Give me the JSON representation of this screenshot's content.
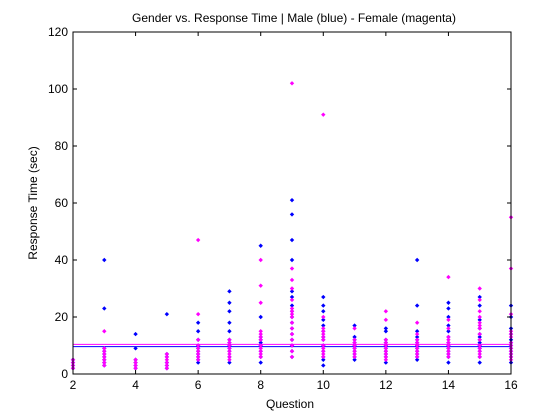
{
  "chart_data": {
    "type": "scatter",
    "title": "Gender vs. Response Time | Male (blue) - Female (magenta)",
    "xlabel": "Question",
    "ylabel": "Response Time (sec)",
    "xlim": [
      2,
      16
    ],
    "ylim": [
      0,
      120
    ],
    "xticks": [
      "2",
      "4",
      "6",
      "8",
      "10",
      "12",
      "14",
      "16"
    ],
    "yticks": [
      "0",
      "20",
      "40",
      "60",
      "80",
      "100",
      "120"
    ],
    "grid": false,
    "series": [
      {
        "name": "Male",
        "color": "#0000ff",
        "points": [
          [
            2,
            2
          ],
          [
            2,
            3
          ],
          [
            2,
            4
          ],
          [
            2,
            5
          ],
          [
            3,
            3
          ],
          [
            3,
            4
          ],
          [
            3,
            5
          ],
          [
            3,
            6
          ],
          [
            3,
            7
          ],
          [
            3,
            8
          ],
          [
            3,
            9
          ],
          [
            3,
            23
          ],
          [
            3,
            40
          ],
          [
            4,
            2
          ],
          [
            4,
            3
          ],
          [
            4,
            4
          ],
          [
            4,
            5
          ],
          [
            4,
            9
          ],
          [
            4,
            14
          ],
          [
            5,
            2
          ],
          [
            5,
            3
          ],
          [
            5,
            4
          ],
          [
            5,
            6
          ],
          [
            5,
            7
          ],
          [
            5,
            21
          ],
          [
            6,
            4
          ],
          [
            6,
            5
          ],
          [
            6,
            6
          ],
          [
            6,
            7
          ],
          [
            6,
            8
          ],
          [
            6,
            9
          ],
          [
            6,
            10
          ],
          [
            6,
            12
          ],
          [
            6,
            15
          ],
          [
            6,
            18
          ],
          [
            7,
            4
          ],
          [
            7,
            6
          ],
          [
            7,
            8
          ],
          [
            7,
            9
          ],
          [
            7,
            10
          ],
          [
            7,
            11
          ],
          [
            7,
            12
          ],
          [
            7,
            15
          ],
          [
            7,
            18
          ],
          [
            7,
            22
          ],
          [
            7,
            25
          ],
          [
            7,
            29
          ],
          [
            8,
            4
          ],
          [
            8,
            6
          ],
          [
            8,
            8
          ],
          [
            8,
            10
          ],
          [
            8,
            11
          ],
          [
            8,
            12
          ],
          [
            8,
            13
          ],
          [
            8,
            20
          ],
          [
            8,
            45
          ],
          [
            9,
            6
          ],
          [
            9,
            8
          ],
          [
            9,
            10
          ],
          [
            9,
            12
          ],
          [
            9,
            14
          ],
          [
            9,
            16
          ],
          [
            9,
            18
          ],
          [
            9,
            20
          ],
          [
            9,
            22
          ],
          [
            9,
            24
          ],
          [
            9,
            27
          ],
          [
            9,
            29
          ],
          [
            9,
            40
          ],
          [
            9,
            47
          ],
          [
            9,
            56
          ],
          [
            9,
            61
          ],
          [
            10,
            3
          ],
          [
            10,
            5
          ],
          [
            10,
            6
          ],
          [
            10,
            8
          ],
          [
            10,
            10
          ],
          [
            10,
            12
          ],
          [
            10,
            13
          ],
          [
            10,
            15
          ],
          [
            10,
            17
          ],
          [
            10,
            19
          ],
          [
            10,
            22
          ],
          [
            10,
            24
          ],
          [
            10,
            27
          ],
          [
            11,
            5
          ],
          [
            11,
            6
          ],
          [
            11,
            7
          ],
          [
            11,
            8
          ],
          [
            11,
            9
          ],
          [
            11,
            10
          ],
          [
            11,
            11
          ],
          [
            11,
            12
          ],
          [
            11,
            13
          ],
          [
            11,
            17
          ],
          [
            12,
            4
          ],
          [
            12,
            6
          ],
          [
            12,
            7
          ],
          [
            12,
            8
          ],
          [
            12,
            9
          ],
          [
            12,
            10
          ],
          [
            12,
            11
          ],
          [
            12,
            12
          ],
          [
            12,
            15
          ],
          [
            12,
            16
          ],
          [
            13,
            5
          ],
          [
            13,
            6
          ],
          [
            13,
            7
          ],
          [
            13,
            8
          ],
          [
            13,
            9
          ],
          [
            13,
            10
          ],
          [
            13,
            11
          ],
          [
            13,
            12
          ],
          [
            13,
            13
          ],
          [
            13,
            15
          ],
          [
            13,
            24
          ],
          [
            13,
            40
          ],
          [
            14,
            4
          ],
          [
            14,
            6
          ],
          [
            14,
            7
          ],
          [
            14,
            8
          ],
          [
            14,
            9
          ],
          [
            14,
            10
          ],
          [
            14,
            11
          ],
          [
            14,
            13
          ],
          [
            14,
            15
          ],
          [
            14,
            17
          ],
          [
            14,
            20
          ],
          [
            14,
            23
          ],
          [
            14,
            25
          ],
          [
            15,
            4
          ],
          [
            15,
            6
          ],
          [
            15,
            8
          ],
          [
            15,
            9
          ],
          [
            15,
            10
          ],
          [
            15,
            11
          ],
          [
            15,
            12
          ],
          [
            15,
            13
          ],
          [
            15,
            14
          ],
          [
            15,
            16
          ],
          [
            15,
            19
          ],
          [
            15,
            24
          ],
          [
            15,
            27
          ],
          [
            16,
            4
          ],
          [
            16,
            6
          ],
          [
            16,
            7
          ],
          [
            16,
            8
          ],
          [
            16,
            9
          ],
          [
            16,
            10
          ],
          [
            16,
            11
          ],
          [
            16,
            12
          ],
          [
            16,
            14
          ],
          [
            16,
            16
          ],
          [
            16,
            20
          ],
          [
            16,
            24
          ]
        ]
      },
      {
        "name": "Female",
        "color": "#ff00ff",
        "points": [
          [
            2,
            2
          ],
          [
            2,
            3
          ],
          [
            2,
            4
          ],
          [
            2,
            5
          ],
          [
            3,
            3
          ],
          [
            3,
            4
          ],
          [
            3,
            5
          ],
          [
            3,
            6
          ],
          [
            3,
            7
          ],
          [
            3,
            8
          ],
          [
            3,
            9
          ],
          [
            3,
            15
          ],
          [
            4,
            2
          ],
          [
            4,
            3
          ],
          [
            4,
            4
          ],
          [
            4,
            5
          ],
          [
            5,
            2
          ],
          [
            5,
            3
          ],
          [
            5,
            4
          ],
          [
            5,
            5
          ],
          [
            5,
            6
          ],
          [
            5,
            7
          ],
          [
            6,
            5
          ],
          [
            6,
            6
          ],
          [
            6,
            7
          ],
          [
            6,
            8
          ],
          [
            6,
            9
          ],
          [
            6,
            10
          ],
          [
            6,
            12
          ],
          [
            6,
            21
          ],
          [
            6,
            47
          ],
          [
            7,
            5
          ],
          [
            7,
            6
          ],
          [
            7,
            7
          ],
          [
            7,
            8
          ],
          [
            7,
            9
          ],
          [
            7,
            10
          ],
          [
            7,
            11
          ],
          [
            7,
            12
          ],
          [
            8,
            6
          ],
          [
            8,
            7
          ],
          [
            8,
            8
          ],
          [
            8,
            9
          ],
          [
            8,
            10
          ],
          [
            8,
            12
          ],
          [
            8,
            13
          ],
          [
            8,
            14
          ],
          [
            8,
            15
          ],
          [
            8,
            25
          ],
          [
            8,
            31
          ],
          [
            8,
            40
          ],
          [
            9,
            6
          ],
          [
            9,
            8
          ],
          [
            9,
            10
          ],
          [
            9,
            12
          ],
          [
            9,
            14
          ],
          [
            9,
            16
          ],
          [
            9,
            18
          ],
          [
            9,
            20
          ],
          [
            9,
            21
          ],
          [
            9,
            22
          ],
          [
            9,
            23
          ],
          [
            9,
            26
          ],
          [
            9,
            30
          ],
          [
            9,
            33
          ],
          [
            9,
            37
          ],
          [
            9,
            102
          ],
          [
            10,
            6
          ],
          [
            10,
            7
          ],
          [
            10,
            8
          ],
          [
            10,
            9
          ],
          [
            10,
            10
          ],
          [
            10,
            12
          ],
          [
            10,
            13
          ],
          [
            10,
            14
          ],
          [
            10,
            15
          ],
          [
            10,
            16
          ],
          [
            10,
            20
          ],
          [
            10,
            91
          ],
          [
            11,
            6
          ],
          [
            11,
            7
          ],
          [
            11,
            8
          ],
          [
            11,
            9
          ],
          [
            11,
            10
          ],
          [
            11,
            11
          ],
          [
            11,
            12
          ],
          [
            11,
            16
          ],
          [
            12,
            5
          ],
          [
            12,
            6
          ],
          [
            12,
            7
          ],
          [
            12,
            8
          ],
          [
            12,
            9
          ],
          [
            12,
            10
          ],
          [
            12,
            11
          ],
          [
            12,
            12
          ],
          [
            12,
            19
          ],
          [
            12,
            22
          ],
          [
            13,
            6
          ],
          [
            13,
            7
          ],
          [
            13,
            8
          ],
          [
            13,
            9
          ],
          [
            13,
            10
          ],
          [
            13,
            11
          ],
          [
            13,
            12
          ],
          [
            13,
            14
          ],
          [
            13,
            18
          ],
          [
            14,
            6
          ],
          [
            14,
            7
          ],
          [
            14,
            8
          ],
          [
            14,
            9
          ],
          [
            14,
            10
          ],
          [
            14,
            11
          ],
          [
            14,
            12
          ],
          [
            14,
            13
          ],
          [
            14,
            16
          ],
          [
            14,
            19
          ],
          [
            14,
            34
          ],
          [
            15,
            6
          ],
          [
            15,
            7
          ],
          [
            15,
            8
          ],
          [
            15,
            9
          ],
          [
            15,
            10
          ],
          [
            15,
            12
          ],
          [
            15,
            14
          ],
          [
            15,
            16
          ],
          [
            15,
            17
          ],
          [
            15,
            18
          ],
          [
            15,
            20
          ],
          [
            15,
            22
          ],
          [
            15,
            26
          ],
          [
            15,
            30
          ],
          [
            16,
            5
          ],
          [
            16,
            6
          ],
          [
            16,
            7
          ],
          [
            16,
            8
          ],
          [
            16,
            9
          ],
          [
            16,
            10
          ],
          [
            16,
            11
          ],
          [
            16,
            13
          ],
          [
            16,
            14
          ],
          [
            16,
            15
          ],
          [
            16,
            21
          ],
          [
            16,
            37
          ],
          [
            16,
            55
          ]
        ]
      }
    ],
    "reference_lines": [
      {
        "series": "Male",
        "y": 9.6,
        "color": "#0000ff"
      },
      {
        "series": "Female",
        "y": 10.4,
        "color": "#ff00ff"
      }
    ]
  }
}
